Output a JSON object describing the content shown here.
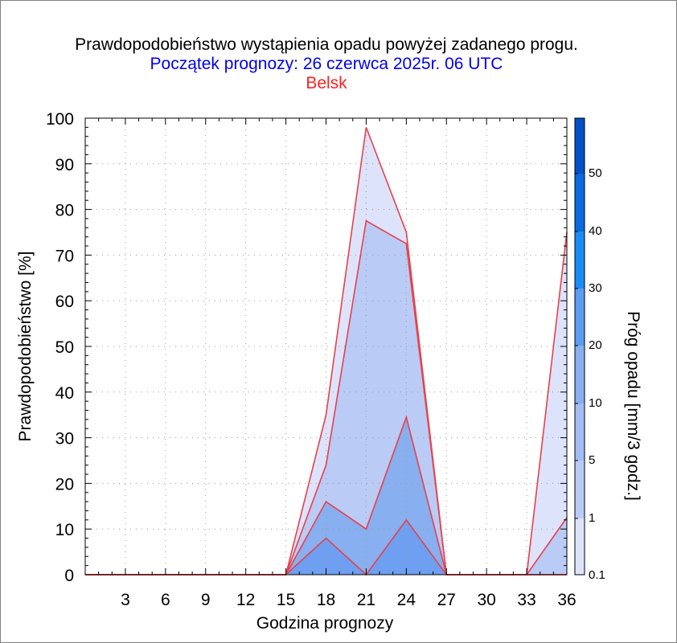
{
  "chart_data": {
    "type": "area",
    "title": "Prawdopodobieństwo wystąpienia opadu powyżej zadanego progu.",
    "subtitle": "Początek prognozy: 26 czerwca 2025r. 06 UTC",
    "location": "Belsk",
    "xlabel": "Godzina prognozy",
    "ylabel": "Prawdopodobieństwo [%]",
    "xlim": [
      0,
      36
    ],
    "ylim": [
      0,
      100
    ],
    "xticks": [
      3,
      6,
      9,
      12,
      15,
      18,
      21,
      24,
      27,
      30,
      33,
      36
    ],
    "yticks": [
      0,
      10,
      20,
      30,
      40,
      50,
      60,
      70,
      80,
      90,
      100
    ],
    "grid": true,
    "x": [
      0,
      3,
      6,
      9,
      12,
      15,
      18,
      21,
      24,
      27,
      30,
      33,
      36
    ],
    "series": [
      {
        "name": "0.1",
        "color": "#dde3fb",
        "values": [
          0,
          0,
          0,
          0,
          0,
          0,
          35,
          98,
          75,
          0,
          0,
          0,
          75
        ]
      },
      {
        "name": "1",
        "color": "#bacbf6",
        "values": [
          0,
          0,
          0,
          0,
          0,
          0,
          24,
          77.5,
          72.5,
          0,
          0,
          0,
          12.5
        ]
      },
      {
        "name": "5",
        "color": "#88afef",
        "values": [
          0,
          0,
          0,
          0,
          0,
          0,
          16,
          10,
          34.5,
          0,
          0,
          0,
          0
        ]
      },
      {
        "name": "10",
        "color": "#6f9ff0",
        "values": [
          0,
          0,
          0,
          0,
          0,
          0,
          8,
          0,
          12,
          0,
          0,
          0,
          0
        ]
      }
    ],
    "line_color": "#e8404a",
    "colorbar": {
      "title": "Próg opadu [mm/3 godz.]",
      "labels": [
        "0.1",
        "1",
        "5",
        "10",
        "20",
        "30",
        "40",
        "50"
      ],
      "colors": [
        "#dde3fb",
        "#bacbf6",
        "#a3bdf3",
        "#88afef",
        "#5c9cf2",
        "#1a8cf5",
        "#0a6ae0",
        "#0050c8",
        "#0a3ca8"
      ]
    }
  }
}
